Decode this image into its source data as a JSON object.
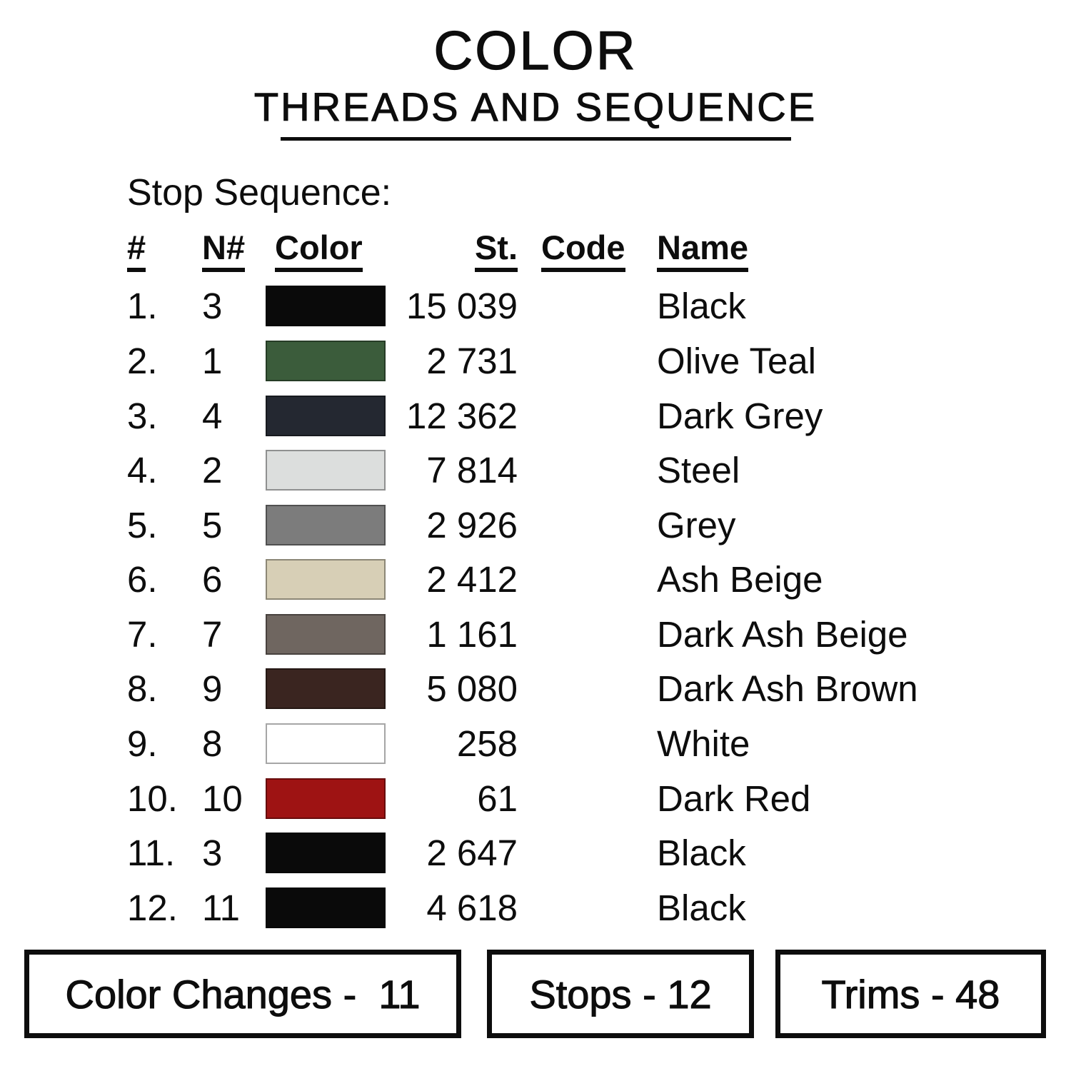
{
  "header": {
    "title": "COLOR",
    "subtitle": "THREADS AND SEQUENCE"
  },
  "section_label": "Stop Sequence:",
  "table": {
    "columns": [
      "#",
      "N#",
      "Color",
      "St.",
      "Code",
      "Name"
    ],
    "rows": [
      {
        "num": "1.",
        "needle": "3",
        "swatch": "#0a0a0a",
        "st": "15 039",
        "code": "",
        "name": "Black"
      },
      {
        "num": "2.",
        "needle": "1",
        "swatch": "#3b5c3b",
        "st": "2 731",
        "code": "",
        "name": "Olive Teal"
      },
      {
        "num": "3.",
        "needle": "4",
        "swatch": "#242831",
        "st": "12 362",
        "code": "",
        "name": "Dark Grey"
      },
      {
        "num": "4.",
        "needle": "2",
        "swatch": "#dcdedd",
        "st": "7 814",
        "code": "",
        "name": "Steel"
      },
      {
        "num": "5.",
        "needle": "5",
        "swatch": "#7c7c7c",
        "st": "2 926",
        "code": "",
        "name": "Grey"
      },
      {
        "num": "6.",
        "needle": "6",
        "swatch": "#d7cfb6",
        "st": "2 412",
        "code": "",
        "name": "Ash Beige"
      },
      {
        "num": "7.",
        "needle": "7",
        "swatch": "#6f6660",
        "st": "1 161",
        "code": "",
        "name": "Dark Ash Beige"
      },
      {
        "num": "8.",
        "needle": "9",
        "swatch": "#3a2520",
        "st": "5 080",
        "code": "",
        "name": "Dark Ash Brown"
      },
      {
        "num": "9.",
        "needle": "8",
        "swatch": "#ffffff",
        "st": "258",
        "code": "",
        "name": "White"
      },
      {
        "num": "10.",
        "needle": "10",
        "swatch": "#9e1313",
        "st": "61",
        "code": "",
        "name": "Dark Red"
      },
      {
        "num": "11.",
        "needle": "3",
        "swatch": "#0a0a0a",
        "st": "2 647",
        "code": "",
        "name": "Black"
      },
      {
        "num": "12.",
        "needle": "11",
        "swatch": "#0a0a0a",
        "st": "4 618",
        "code": "",
        "name": "Black"
      }
    ]
  },
  "footer": {
    "boxes": [
      {
        "label": "Color Changes -  11"
      },
      {
        "label": "Stops - 12"
      },
      {
        "label": "Trims - 48"
      }
    ]
  }
}
